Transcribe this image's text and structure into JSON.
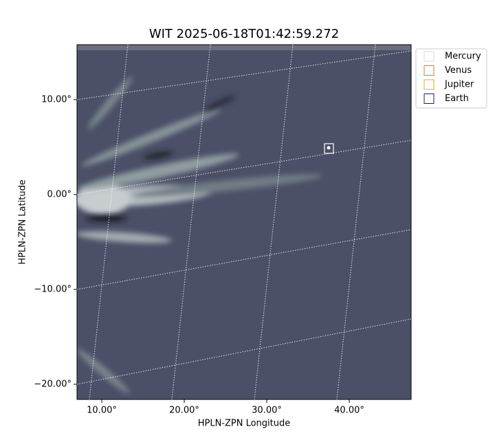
{
  "chart_data": {
    "type": "image",
    "title": "WIT 2025-06-18T01:42:59.272",
    "x_label": "HPLN-ZPN Longitude",
    "y_label": "HPLN-ZPN Latitude",
    "xlim": [
      7.0,
      47.5
    ],
    "ylim": [
      -21.6,
      15.8
    ],
    "xticks": [
      {
        "value": 10,
        "label": "10.00°"
      },
      {
        "value": 20,
        "label": "20.00°"
      },
      {
        "value": 30,
        "label": "30.00°"
      },
      {
        "value": 40,
        "label": "40.00°"
      }
    ],
    "yticks": [
      {
        "value": -20,
        "label": "−20.00°"
      },
      {
        "value": -10,
        "label": "−10.00°"
      },
      {
        "value": 0,
        "label": "0.00°"
      },
      {
        "value": 10,
        "label": "10.00°"
      }
    ],
    "grid": true,
    "legend_position": "upper right",
    "series": [
      {
        "name": "Mercury",
        "color": "#d8d8d8"
      },
      {
        "name": "Venus",
        "color": "#d9773a"
      },
      {
        "name": "Jupiter",
        "color": "#e3ac25"
      },
      {
        "name": "Earth",
        "color": "#1c1c78"
      }
    ]
  }
}
